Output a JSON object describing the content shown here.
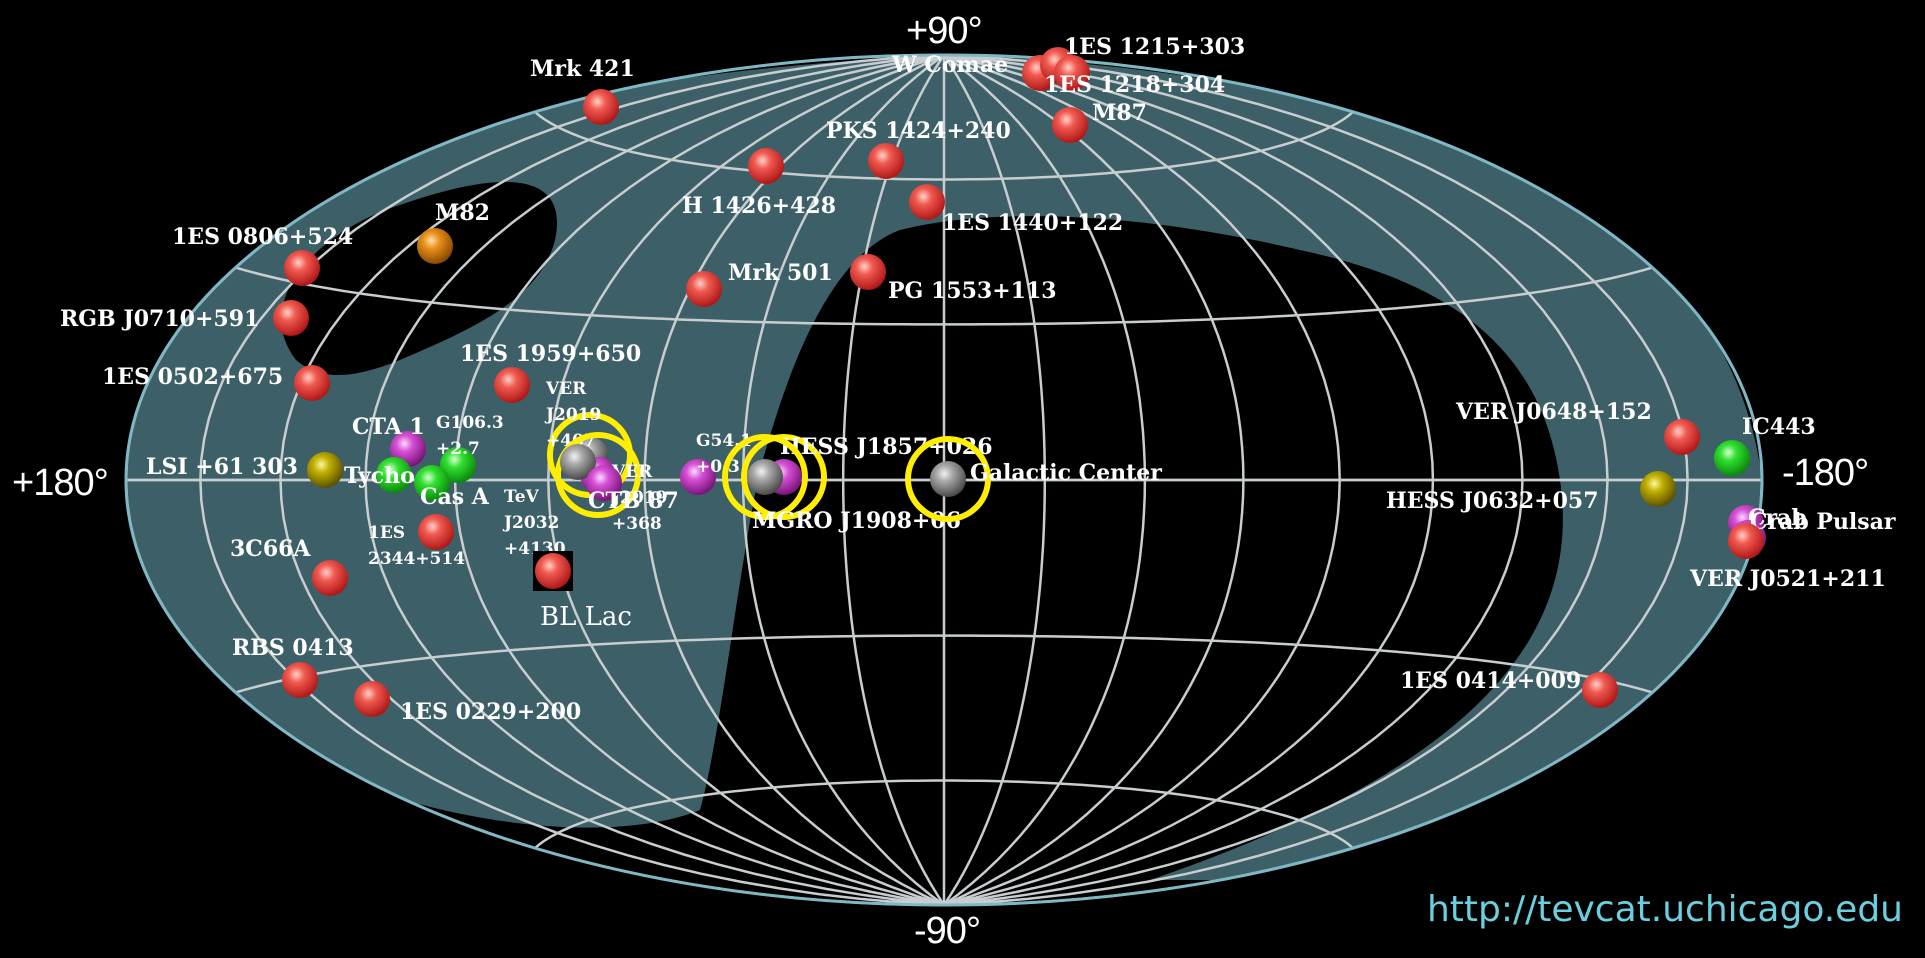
{
  "axes": {
    "top": "+90°",
    "bottom": "-90°",
    "left": "+180°",
    "right": "-180°"
  },
  "url": "http://tevcat.uchicago.edu",
  "colors": {
    "background": "#000000",
    "galactic_band": "#3d6068",
    "grid": "#c8cdd0",
    "red_source": "#e83a3a",
    "green_source": "#22dd22",
    "magenta_source": "#d040d0",
    "yellow_source": "#b6a800",
    "orange_source": "#e08a10",
    "gray_source": "#a0a0a0",
    "highlight_ring": "#ffee00"
  },
  "sources": [
    {
      "label": "Mrk 421",
      "color": "red"
    },
    {
      "label": "W Comae",
      "color": "red"
    },
    {
      "label": "1ES 1215+303",
      "color": "red"
    },
    {
      "label": "1ES 1218+304",
      "color": "red"
    },
    {
      "label": "M87",
      "color": "red"
    },
    {
      "label": "PKS 1424+240",
      "color": "red"
    },
    {
      "label": "H 1426+428",
      "color": "red"
    },
    {
      "label": "1ES 1440+122",
      "color": "red"
    },
    {
      "label": "M82",
      "color": "orange"
    },
    {
      "label": "1ES 0806+524",
      "color": "red"
    },
    {
      "label": "Mrk 501",
      "color": "red"
    },
    {
      "label": "PG 1553+113",
      "color": "red"
    },
    {
      "label": "RGB J0710+591",
      "color": "red"
    },
    {
      "label": "1ES 1959+650",
      "color": "red"
    },
    {
      "label": "1ES 0502+675",
      "color": "red"
    },
    {
      "label": "VER J2019 +407",
      "color": "gray"
    },
    {
      "label": "VER J2019 +368",
      "color": "magenta"
    },
    {
      "label": "CTA 1",
      "color": "magenta"
    },
    {
      "label": "G106.3 +2.7",
      "color": "green"
    },
    {
      "label": "G54.1 +0.3",
      "color": "magenta"
    },
    {
      "label": "HESS J1857+026",
      "color": "magenta"
    },
    {
      "label": "LSI +61 303",
      "color": "yellow"
    },
    {
      "label": "Tycho",
      "color": "green"
    },
    {
      "label": "Cas A",
      "color": "green"
    },
    {
      "label": "TeV J2032 +4130",
      "color": "gray"
    },
    {
      "label": "CTB 87",
      "color": "magenta"
    },
    {
      "label": "MGRO J1908+06",
      "color": "gray"
    },
    {
      "label": "Galactic Center",
      "color": "gray"
    },
    {
      "label": "1ES 2344+514",
      "color": "red"
    },
    {
      "label": "3C66A",
      "color": "red"
    },
    {
      "label": "BL Lac",
      "color": "red"
    },
    {
      "label": "RBS 0413",
      "color": "red"
    },
    {
      "label": "1ES 0229+200",
      "color": "red"
    },
    {
      "label": "VER J0648+152",
      "color": "red"
    },
    {
      "label": "IC443",
      "color": "green"
    },
    {
      "label": "HESS J0632+057",
      "color": "yellow"
    },
    {
      "label": "Crab",
      "color": "magenta"
    },
    {
      "label": "Crab Pulsar",
      "color": "magenta"
    },
    {
      "label": "VER J0521+211",
      "color": "red"
    },
    {
      "label": "1ES 0414+009",
      "color": "red"
    }
  ]
}
